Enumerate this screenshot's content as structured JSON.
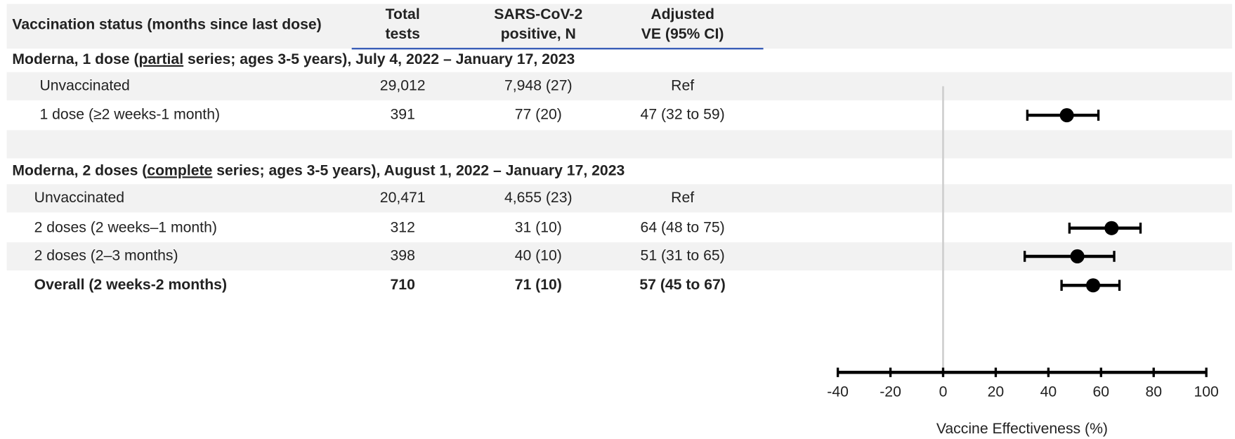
{
  "header": {
    "columns": [
      "Vaccination status (months since last dose)",
      "Total\ntests",
      "SARS-CoV-2\npositive, N",
      "Adjusted\nVE (95% CI)"
    ]
  },
  "sections": [
    {
      "title_parts": [
        "Moderna, 1 dose (",
        "partial",
        " series; ages 3-5 years), July 4, 2022 – January 17, 2023"
      ],
      "rows": [
        {
          "cells": [
            "Unvaccinated",
            "29,012",
            "7,948 (27)",
            "Ref"
          ]
        },
        {
          "cells": [
            "1 dose (≥2 weeks-1 month)",
            "391",
            "77 (20)",
            "47 (32 to 59)"
          ],
          "estimate": [
            47,
            32,
            59
          ]
        }
      ]
    },
    {
      "title_parts": [
        "Moderna, 2 doses (",
        "complete",
        " series; ages 3-5 years), August 1, 2022 – January 17, 2023"
      ],
      "rows": [
        {
          "cells": [
            "Unvaccinated",
            "20,471",
            "4,655 (23)",
            "Ref"
          ]
        },
        {
          "cells": [
            "2 doses (2 weeks–1 month)",
            "312",
            "31 (10)",
            "64 (48 to 75)"
          ],
          "estimate": [
            64,
            48,
            75
          ]
        },
        {
          "cells": [
            "2 doses (2–3 months)",
            "398",
            "40 (10)",
            "51 (31 to 65)"
          ],
          "estimate": [
            51,
            31,
            65
          ]
        },
        {
          "cells": [
            "Overall (2 weeks-2 months)",
            "710",
            "71 (10)",
            "57 (45 to 67)"
          ],
          "estimate": [
            57,
            45,
            67
          ],
          "bold": true
        }
      ]
    }
  ],
  "axis": {
    "label": "Vaccine Effectiveness (%)",
    "xlim": [
      -40,
      100
    ],
    "xticks": [
      -40,
      -20,
      0,
      20,
      40,
      60,
      80,
      100
    ],
    "reference": 0
  }
}
